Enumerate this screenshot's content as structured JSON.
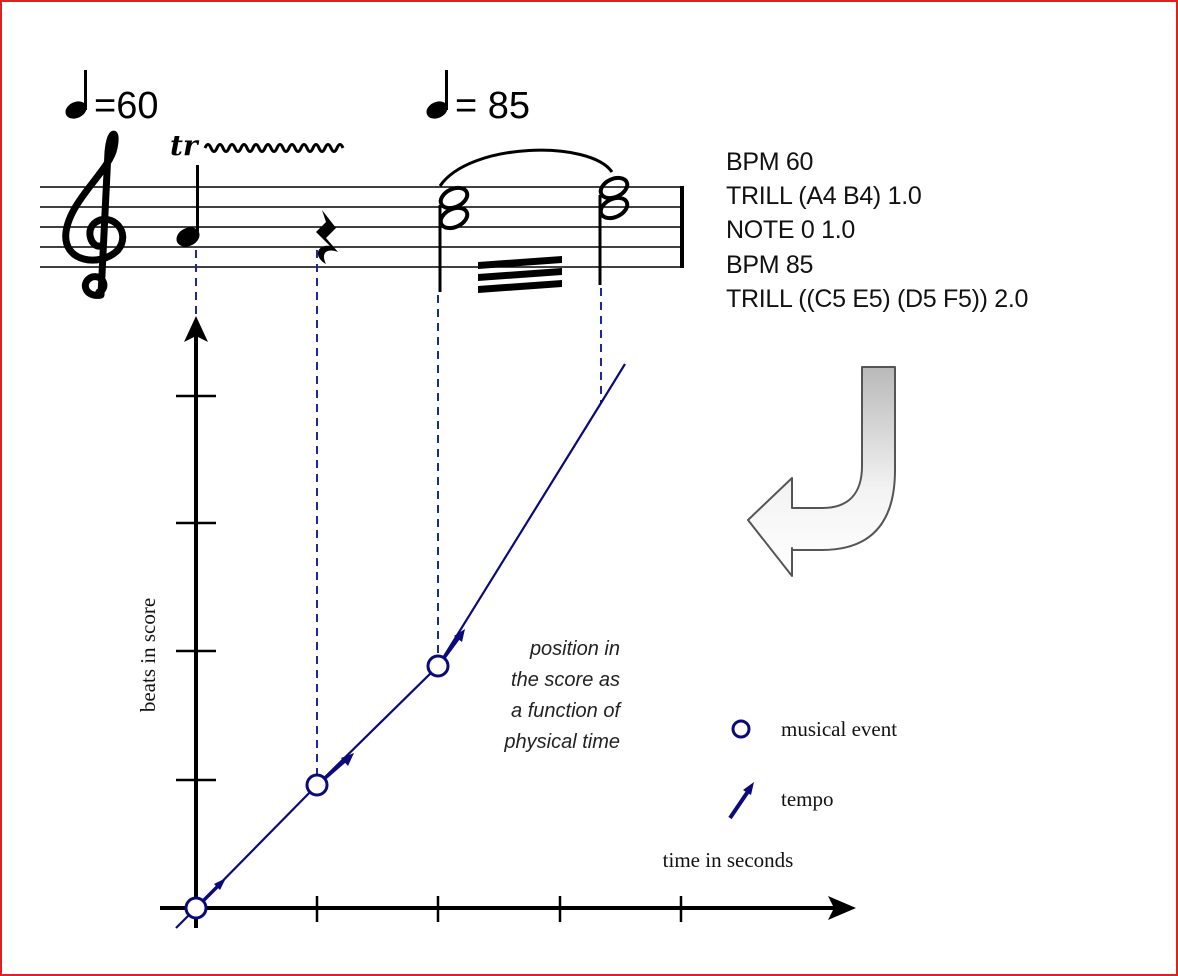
{
  "tempo_marks": [
    {
      "symbol": "quarter-note",
      "value": "=60"
    },
    {
      "symbol": "quarter-note",
      "value": "= 85"
    }
  ],
  "score": {
    "trill_mark": "tr"
  },
  "code": [
    "BPM 60",
    "TRILL (A4 B4) 1.0",
    "NOTE 0 1.0",
    "BPM 85",
    "TRILL ((C5 E5) (D5 F5)) 2.0"
  ],
  "chart": {
    "xlabel": "time in seconds",
    "ylabel": "beats in score",
    "annotation": [
      "position in",
      "the score as",
      "a function of",
      "physical time"
    ]
  },
  "legend": [
    {
      "icon": "circle-icon",
      "label": "musical event"
    },
    {
      "icon": "tempo-arrow-icon",
      "label": "tempo"
    }
  ],
  "colors": {
    "series": "#0a0a7a",
    "event_fill": "#ffffff",
    "frame": "#e02020",
    "guides": "#1a2a9a"
  }
}
